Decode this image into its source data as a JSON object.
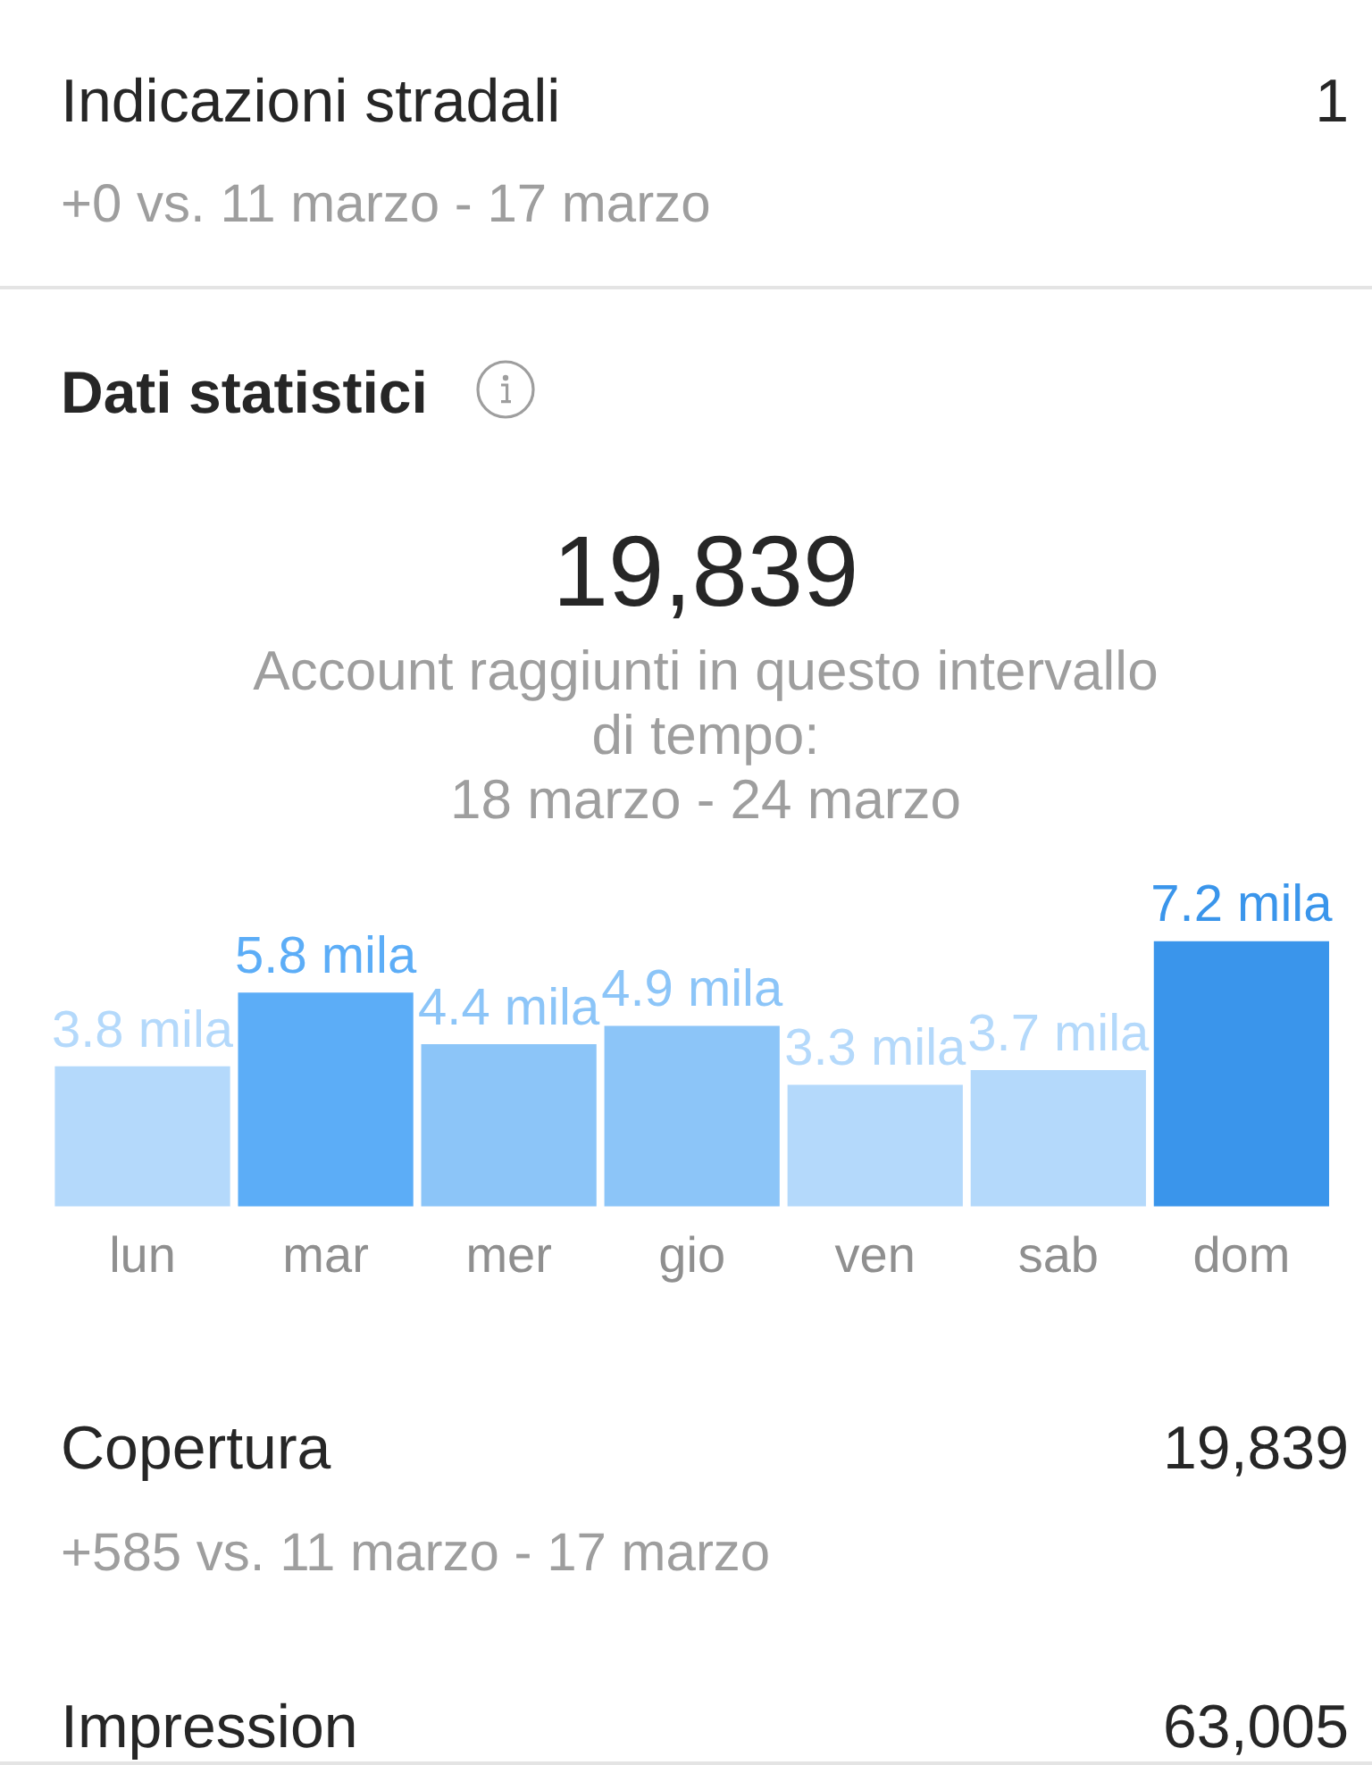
{
  "chart_data": {
    "type": "bar",
    "title": "Dati statistici",
    "categories": [
      "lun",
      "mar",
      "mer",
      "gio",
      "ven",
      "sab",
      "dom"
    ],
    "values": [
      3.8,
      5.8,
      4.4,
      4.9,
      3.3,
      3.7,
      7.2
    ],
    "value_labels": [
      "3.8 mila",
      "5.8 mila",
      "4.4 mila",
      "4.9 mila",
      "3.3 mila",
      "3.7 mila",
      "7.2 mila"
    ],
    "colors": [
      "#b4d9fb",
      "#5cadf7",
      "#8cc5f8",
      "#8cc5f8",
      "#b4d9fb",
      "#b4d9fb",
      "#3a95eb"
    ],
    "annotations": [
      "Indicazioni stradali",
      "1",
      "+0 vs. 11 marzo - 17 marzo",
      "19,839",
      "Account raggiunti in questo intervallo di tempo:",
      "18 marzo - 24 marzo",
      "Copertura",
      "19,839",
      "+585 vs. 11 marzo - 17 marzo",
      "Impression",
      "63,005"
    ]
  }
}
